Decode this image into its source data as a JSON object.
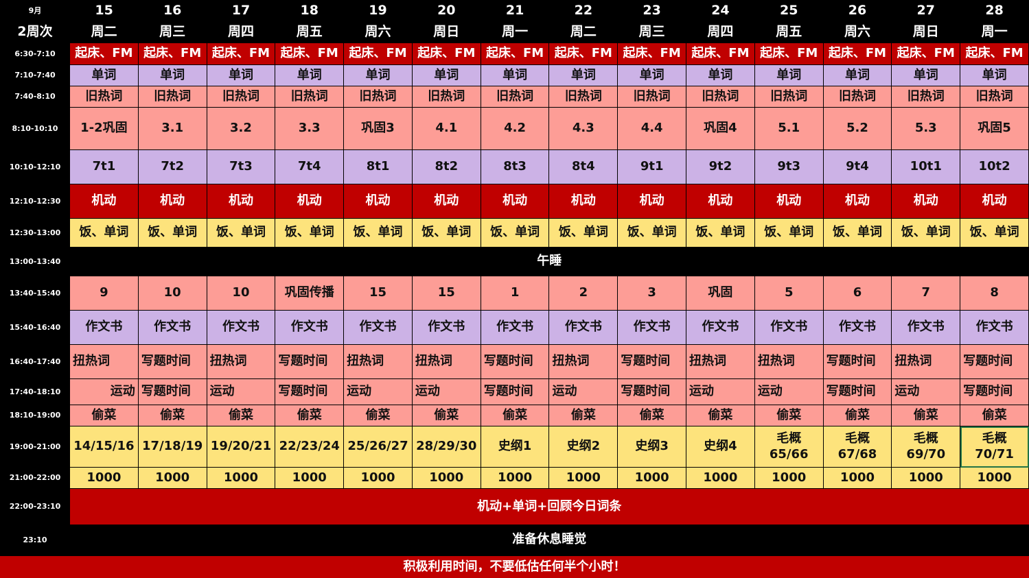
{
  "header": {
    "month": "9月",
    "week": "2周次",
    "dates": [
      "15",
      "16",
      "17",
      "18",
      "19",
      "20",
      "21",
      "22",
      "23",
      "24",
      "25",
      "26",
      "27",
      "28"
    ],
    "weekdays": [
      "周二",
      "周三",
      "周四",
      "周五",
      "周六",
      "周日",
      "周一",
      "周二",
      "周三",
      "周四",
      "周五",
      "周六",
      "周日",
      "周一"
    ]
  },
  "colors": {
    "red": "#c00000",
    "lavender": "#ccb2e6",
    "salmon": "#fd9d96",
    "yellow": "#fde37c",
    "black": "#000000"
  },
  "rows": [
    {
      "time": "6:30-7:10",
      "color": "red",
      "cells": [
        "起床、FM",
        "起床、FM",
        "起床、FM",
        "起床、FM",
        "起床、FM",
        "起床、FM",
        "起床、FM",
        "起床、FM",
        "起床、FM",
        "起床、FM",
        "起床、FM",
        "起床、FM",
        "起床、FM",
        "起床、FM"
      ]
    },
    {
      "time": "7:10-7:40",
      "color": "lavender",
      "cells": [
        "单词",
        "单词",
        "单词",
        "单词",
        "单词",
        "单词",
        "单词",
        "单词",
        "单词",
        "单词",
        "单词",
        "单词",
        "单词",
        "单词"
      ]
    },
    {
      "time": "7:40-8:10",
      "color": "salmon",
      "cells": [
        "旧热词",
        "旧热词",
        "旧热词",
        "旧热词",
        "旧热词",
        "旧热词",
        "旧热词",
        "旧热词",
        "旧热词",
        "旧热词",
        "旧热词",
        "旧热词",
        "旧热词",
        "旧热词"
      ]
    },
    {
      "time": "8:10-10:10",
      "color": "salmon",
      "cells": [
        "1-2巩固",
        "3.1",
        "3.2",
        "3.3",
        "巩固3",
        "4.1",
        "4.2",
        "4.3",
        "4.4",
        "巩固4",
        "5.1",
        "5.2",
        "5.3",
        "巩固5"
      ]
    },
    {
      "time": "10:10-12:10",
      "color": "lavender",
      "cells": [
        "7t1",
        "7t2",
        "7t3",
        "7t4",
        "8t1",
        "8t2",
        "8t3",
        "8t4",
        "9t1",
        "9t2",
        "9t3",
        "9t4",
        "10t1",
        "10t2"
      ]
    },
    {
      "time": "12:10-12:30",
      "color": "red",
      "cells": [
        "机动",
        "机动",
        "机动",
        "机动",
        "机动",
        "机动",
        "机动",
        "机动",
        "机动",
        "机动",
        "机动",
        "机动",
        "机动",
        "机动"
      ]
    },
    {
      "time": "12:30-13:00",
      "color": "yellow",
      "cells": [
        "饭、单词",
        "饭、单词",
        "饭、单词",
        "饭、单词",
        "饭、单词",
        "饭、单词",
        "饭、单词",
        "饭、单词",
        "饭、单词",
        "饭、单词",
        "饭、单词",
        "饭、单词",
        "饭、单词",
        "饭、单词"
      ]
    },
    {
      "time": "13:00-13:40",
      "color": "black",
      "merged": "午睡"
    },
    {
      "time": "13:40-15:40",
      "color": "salmon",
      "cells": [
        "9",
        "10",
        "10",
        "巩固传播",
        "15",
        "15",
        "1",
        "2",
        "3",
        "巩固",
        "5",
        "6",
        "7",
        "8"
      ]
    },
    {
      "time": "15:40-16:40",
      "color": "lavender",
      "cells": [
        "作文书",
        "作文书",
        "作文书",
        "作文书",
        "作文书",
        "作文书",
        "作文书",
        "作文书",
        "作文书",
        "作文书",
        "作文书",
        "作文书",
        "作文书",
        "作文书"
      ]
    },
    {
      "time": "16:40-17:40",
      "color": "salmon",
      "cells": [
        "扭热词",
        "写题时间",
        "扭热词",
        "写题时间",
        "扭热词",
        "扭热词",
        "写题时间",
        "扭热词",
        "写题时间",
        "扭热词",
        "扭热词",
        "写题时间",
        "扭热词",
        "写题时间"
      ]
    },
    {
      "time": "17:40-18:10",
      "color": "salmon",
      "cells": [
        "运动",
        "写题时间",
        "运动",
        "写题时间",
        "运动",
        "运动",
        "写题时间",
        "运动",
        "写题时间",
        "运动",
        "运动",
        "写题时间",
        "运动",
        "写题时间"
      ]
    },
    {
      "time": "18:10-19:00",
      "color": "salmon",
      "cells": [
        "偷菜",
        "偷菜",
        "偷菜",
        "偷菜",
        "偷菜",
        "偷菜",
        "偷菜",
        "偷菜",
        "偷菜",
        "偷菜",
        "偷菜",
        "偷菜",
        "偷菜",
        "偷菜"
      ]
    },
    {
      "time": "19:00-21:00",
      "color": "yellow",
      "cells": [
        "14/15/16",
        "17/18/19",
        "19/20/21",
        "22/23/24",
        "25/26/27",
        "28/29/30",
        "史纲1",
        "史纲2",
        "史纲3",
        "史纲4",
        "毛概\n65/66",
        "毛概\n67/68",
        "毛概\n69/70",
        "毛概\n70/71"
      ]
    },
    {
      "time": "21:00-22:00",
      "color": "yellow",
      "cells": [
        "1000",
        "1000",
        "1000",
        "1000",
        "1000",
        "1000",
        "1000",
        "1000",
        "1000",
        "1000",
        "1000",
        "1000",
        "1000",
        "1000"
      ]
    },
    {
      "time": "22:00-23:10",
      "color": "red",
      "merged": "机动+单词+回顾今日词条"
    },
    {
      "time": "23:10",
      "color": "black",
      "merged": "准备休息睡觉"
    }
  ],
  "footer": "积极利用时间，不要低估任何半个小时！"
}
